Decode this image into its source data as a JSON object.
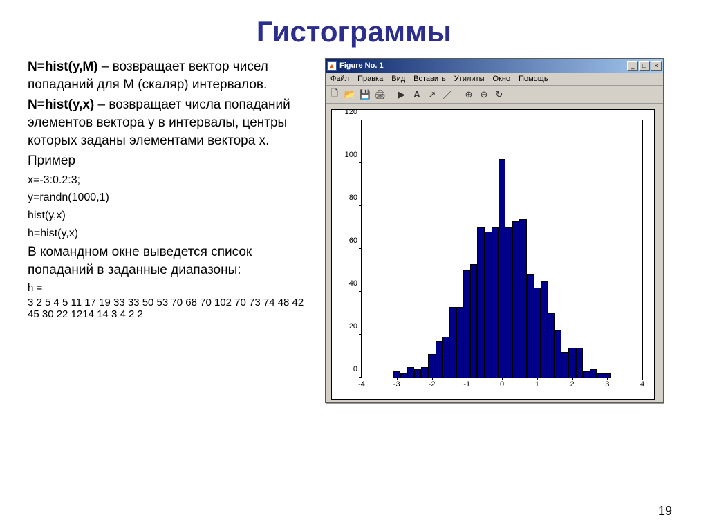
{
  "title": "Гистограммы",
  "left": {
    "line1_kw": "N=hist(y,M)",
    "line1_txt": " – возвращает вектор чисел попаданий для M (скаляр) интервалов.",
    "line2_kw": "N=hist(y,x)",
    "line2_txt": " – возвращает числа попаданий элементов вектора y в интервалы, центры которых заданы элементами вектора x.",
    "example_lbl": "Пример",
    "code1": "x=-3:0.2:3;",
    "code2": "y=randn(1000,1)",
    "code3": "hist(y,x)",
    "code4": "h=hist(y,x)",
    "desc": "В командном окне выведется список попаданий в заданные диапазоны:",
    "heq": "h =",
    "hvals": "3 2  5  4  5 11 17 19 33 33  50 53 70 68 70 102 70 73 74 48 42 45 30 22 1214 14 3 4 2 2"
  },
  "figwin": {
    "title": "Figure No. 1",
    "menu": [
      "Файл",
      "Правка",
      "Вид",
      "Вставить",
      "Утилиты",
      "Окно",
      "Помощь"
    ]
  },
  "chart": {
    "type": "histogram",
    "bar_color": "#00008b",
    "bar_edge": "#000000",
    "x_range": [
      -4,
      4
    ],
    "y_range": [
      0,
      120
    ],
    "xticks": [
      -4,
      -3,
      -2,
      -1,
      0,
      1,
      2,
      3,
      4
    ],
    "yticks": [
      0,
      20,
      40,
      60,
      80,
      100,
      120
    ],
    "bin_centers": [
      -3.0,
      -2.8,
      -2.6,
      -2.4,
      -2.2,
      -2.0,
      -1.8,
      -1.6,
      -1.4,
      -1.2,
      -1.0,
      -0.8,
      -0.6,
      -0.4,
      -0.2,
      0.0,
      0.2,
      0.4,
      0.6,
      0.8,
      1.0,
      1.2,
      1.4,
      1.6,
      1.8,
      2.0,
      2.2,
      2.4,
      2.6,
      2.8,
      3.0
    ],
    "values": [
      3,
      2,
      5,
      4,
      5,
      11,
      17,
      19,
      33,
      33,
      50,
      53,
      70,
      68,
      70,
      102,
      70,
      73,
      74,
      48,
      42,
      45,
      30,
      22,
      12,
      14,
      14,
      3,
      4,
      2,
      2
    ],
    "bin_width": 0.2
  },
  "page_number": "19"
}
